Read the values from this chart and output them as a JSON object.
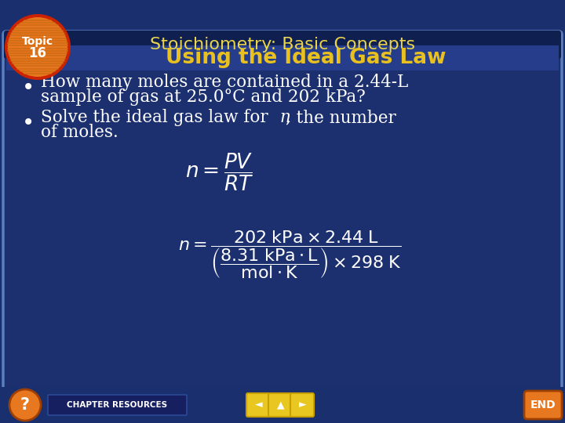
{
  "title": "Stoichiometry: Basic Concepts",
  "subtitle": "Using the Ideal Gas Law",
  "bullet1_line1": "How many moles are contained in a 2.44-L",
  "bullet1_line2": "sample of gas at 25.0°C and 202 kPa?",
  "bullet2_line1": "Solve the ideal gas law for ",
  "bullet2_italic": "n",
  "bullet2_line2": ", the number",
  "bullet2_line3": "of moles.",
  "bg_outer": "#1a2f6e",
  "bg_main": "#1c3070",
  "bg_header_top": "#0f1f50",
  "bg_subtitle_bar": "#1e3a80",
  "title_color": "#e8d44d",
  "subtitle_color": "#e8c020",
  "text_color": "#ffffff",
  "topic_orange": "#e87820",
  "topic_red_border": "#cc2200",
  "topic_stripe": "#c86010",
  "border_color": "#4a6fa5",
  "bottom_bar_color": "#1a2f6e",
  "nav_btn_color": "#e8c820",
  "nav_btn_border": "#c8a000",
  "end_btn_color": "#e87820",
  "end_btn_border": "#c85500"
}
